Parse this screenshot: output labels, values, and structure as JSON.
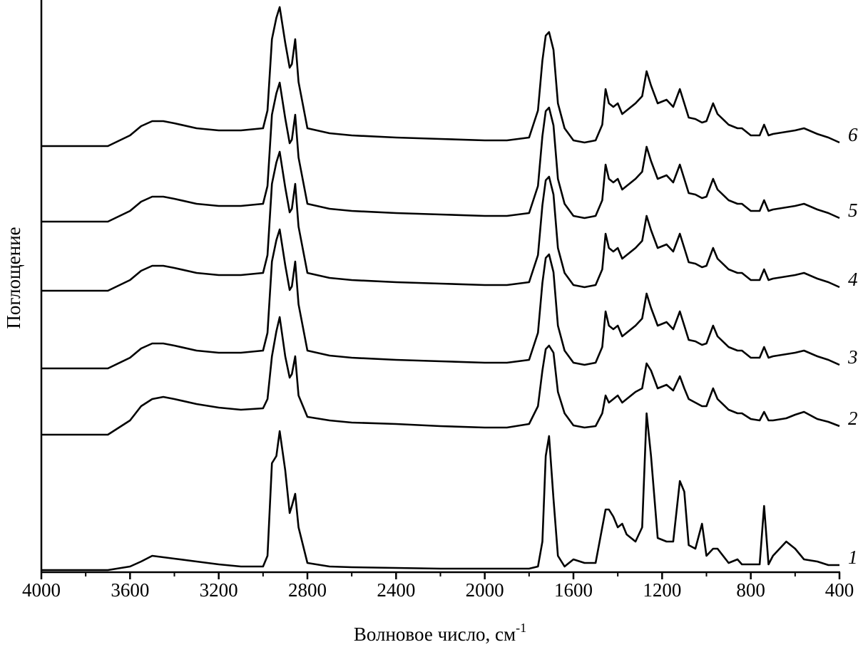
{
  "chart_data": {
    "type": "line",
    "xlabel": {
      "text": "Волновое число, см",
      "superscript": "-1"
    },
    "ylabel": "Поглощение",
    "xlim": [
      4000,
      400
    ],
    "ylim": [
      0,
      80
    ],
    "xticks": [
      4000,
      3600,
      3200,
      2800,
      2400,
      2000,
      1600,
      1200,
      800,
      400
    ],
    "xminorticks": [
      3800,
      3400,
      3000,
      2600,
      2200,
      1800,
      1400,
      1000,
      600
    ],
    "color": "#000000",
    "x": [
      4000,
      3800,
      3700,
      3600,
      3550,
      3500,
      3450,
      3400,
      3300,
      3200,
      3100,
      3000,
      2980,
      2960,
      2940,
      2925,
      2900,
      2880,
      2870,
      2855,
      2840,
      2800,
      2700,
      2600,
      2400,
      2200,
      2000,
      1900,
      1800,
      1760,
      1740,
      1725,
      1710,
      1690,
      1670,
      1640,
      1600,
      1550,
      1500,
      1470,
      1455,
      1440,
      1420,
      1400,
      1380,
      1360,
      1320,
      1290,
      1270,
      1250,
      1220,
      1180,
      1150,
      1120,
      1100,
      1080,
      1050,
      1020,
      1000,
      970,
      950,
      900,
      860,
      840,
      800,
      760,
      740,
      720,
      700,
      640,
      600,
      560,
      500,
      450,
      400
    ],
    "series": [
      {
        "name": "1",
        "values": [
          0.3,
          0.3,
          0.3,
          0.8,
          1.5,
          2.3,
          2.1,
          1.9,
          1.5,
          1.1,
          0.8,
          0.8,
          2.3,
          15.3,
          16.3,
          19.8,
          14.3,
          8.3,
          9.3,
          11.0,
          6.3,
          1.3,
          0.8,
          0.7,
          0.6,
          0.5,
          0.5,
          0.5,
          0.5,
          0.8,
          4.3,
          16.3,
          19.1,
          10.3,
          2.3,
          0.8,
          1.8,
          1.3,
          1.3,
          6.3,
          8.8,
          8.8,
          7.8,
          6.3,
          6.8,
          5.3,
          4.3,
          6.3,
          22.3,
          16.3,
          4.8,
          4.3,
          4.3,
          12.8,
          11.3,
          3.8,
          3.3,
          6.8,
          2.3,
          3.3,
          3.3,
          1.3,
          1.8,
          1.1,
          1.1,
          1.1,
          9.3,
          1.1,
          2.3,
          4.3,
          3.3,
          1.8,
          1.5,
          1.0,
          1.0
        ]
      },
      {
        "name": "2",
        "values": [
          19.3,
          19.3,
          19.3,
          21.3,
          23.3,
          24.3,
          24.6,
          24.3,
          23.6,
          23.1,
          22.8,
          23.0,
          24.3,
          30.3,
          33.8,
          35.8,
          30.3,
          27.3,
          27.8,
          30.3,
          24.8,
          21.8,
          21.3,
          21.0,
          20.8,
          20.5,
          20.3,
          20.3,
          20.8,
          23.3,
          28.3,
          31.3,
          31.8,
          30.8,
          25.3,
          22.3,
          20.6,
          20.3,
          20.5,
          22.3,
          24.8,
          23.8,
          24.3,
          24.8,
          23.8,
          24.3,
          25.3,
          25.8,
          29.3,
          28.3,
          25.8,
          26.3,
          25.5,
          27.5,
          25.8,
          24.3,
          23.8,
          23.3,
          23.3,
          25.8,
          24.3,
          22.8,
          22.3,
          22.3,
          21.5,
          21.3,
          22.5,
          21.3,
          21.3,
          21.6,
          22.1,
          22.5,
          21.5,
          21.1,
          20.5
        ]
      },
      {
        "name": "3",
        "values": [
          28.6,
          28.6,
          28.6,
          30.1,
          31.4,
          32.1,
          32.1,
          31.8,
          31.1,
          30.8,
          30.8,
          31.1,
          33.6,
          43.6,
          46.6,
          48.1,
          43.1,
          39.6,
          40.1,
          43.6,
          37.6,
          31.1,
          30.4,
          30.1,
          29.8,
          29.6,
          29.4,
          29.4,
          29.8,
          33.6,
          40.6,
          44.1,
          44.6,
          42.1,
          34.6,
          31.1,
          29.4,
          29.1,
          29.4,
          31.6,
          36.6,
          34.6,
          34.1,
          34.6,
          33.1,
          33.6,
          34.6,
          35.6,
          39.1,
          37.1,
          34.6,
          35.1,
          34.1,
          36.6,
          34.6,
          32.6,
          32.4,
          31.9,
          32.1,
          34.6,
          33.1,
          31.6,
          31.1,
          31.1,
          30.1,
          30.1,
          31.6,
          30.1,
          30.3,
          30.6,
          30.8,
          31.1,
          30.3,
          29.8,
          29.1
        ]
      },
      {
        "name": "4",
        "values": [
          39.5,
          39.5,
          39.5,
          41.0,
          42.3,
          43.0,
          43.0,
          42.7,
          42.0,
          41.7,
          41.7,
          42.0,
          44.5,
          54.5,
          57.5,
          59.0,
          54.0,
          50.5,
          51.0,
          54.5,
          48.5,
          42.0,
          41.3,
          41.0,
          40.7,
          40.5,
          40.3,
          40.3,
          40.7,
          44.5,
          51.5,
          55.0,
          55.5,
          53.0,
          45.5,
          42.0,
          40.3,
          40.0,
          40.3,
          42.5,
          47.5,
          45.5,
          45.0,
          45.5,
          44.0,
          44.5,
          45.5,
          46.5,
          50.0,
          48.0,
          45.5,
          46.0,
          45.0,
          47.5,
          45.5,
          43.5,
          43.3,
          42.8,
          43.0,
          45.5,
          44.0,
          42.5,
          42.0,
          42.0,
          41.0,
          41.0,
          42.5,
          41.0,
          41.2,
          41.5,
          41.7,
          42.0,
          41.2,
          40.7,
          40.0
        ]
      },
      {
        "name": "5",
        "values": [
          49.2,
          49.2,
          49.2,
          50.7,
          52.0,
          52.7,
          52.7,
          52.4,
          51.7,
          51.4,
          51.4,
          51.7,
          54.2,
          64.2,
          67.2,
          68.7,
          63.7,
          60.2,
          60.7,
          64.2,
          58.2,
          51.7,
          51.0,
          50.7,
          50.4,
          50.2,
          50.0,
          50.0,
          50.4,
          54.2,
          61.2,
          64.7,
          65.2,
          62.7,
          55.2,
          51.7,
          50.0,
          49.7,
          50.0,
          52.2,
          57.2,
          55.2,
          54.7,
          55.2,
          53.7,
          54.2,
          55.2,
          56.2,
          59.7,
          57.7,
          55.2,
          55.7,
          54.7,
          57.2,
          55.2,
          53.2,
          53.0,
          52.5,
          52.7,
          55.2,
          53.7,
          52.2,
          51.7,
          51.7,
          50.7,
          50.7,
          52.2,
          50.7,
          50.9,
          51.2,
          51.4,
          51.7,
          50.9,
          50.4,
          49.7
        ]
      },
      {
        "name": "6",
        "values": [
          59.8,
          59.8,
          59.8,
          61.3,
          62.6,
          63.3,
          63.3,
          63.0,
          62.3,
          62.0,
          62.0,
          62.3,
          64.8,
          74.8,
          77.8,
          79.3,
          74.3,
          70.8,
          71.3,
          74.8,
          68.8,
          62.3,
          61.6,
          61.3,
          61.0,
          60.8,
          60.6,
          60.6,
          61.0,
          64.8,
          71.8,
          75.3,
          75.8,
          73.3,
          65.8,
          62.3,
          60.6,
          60.3,
          60.6,
          62.8,
          67.8,
          65.8,
          65.3,
          65.8,
          64.3,
          64.8,
          65.8,
          66.8,
          70.3,
          68.3,
          65.8,
          66.3,
          65.3,
          67.8,
          65.8,
          63.8,
          63.6,
          63.1,
          63.3,
          65.8,
          64.3,
          62.8,
          62.3,
          62.3,
          61.3,
          61.3,
          62.8,
          61.3,
          61.5,
          61.8,
          62.0,
          62.3,
          61.5,
          61.0,
          60.3
        ]
      }
    ]
  }
}
